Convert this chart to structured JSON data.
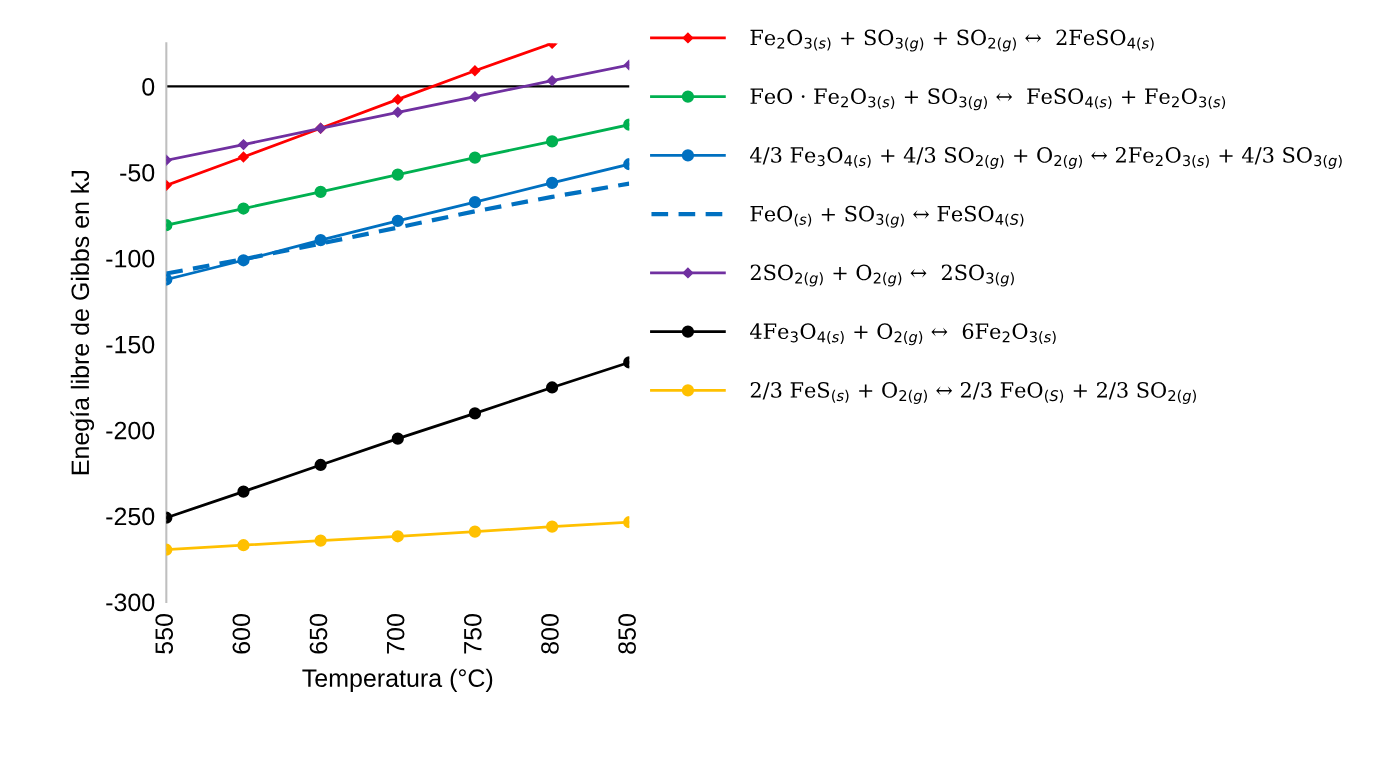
{
  "chart_data": {
    "type": "line",
    "xlabel": "Temperatura (°C)",
    "ylabel": "Enegía libre de Gibbs en kJ",
    "x": [
      550,
      600,
      650,
      700,
      750,
      800,
      850
    ],
    "xlim": [
      550,
      850
    ],
    "xticks": [
      550,
      600,
      650,
      700,
      750,
      800,
      850
    ],
    "ylim": [
      -300,
      25
    ],
    "yticks": [
      {
        "value": -300,
        "label": "-300"
      },
      {
        "value": -250,
        "label": "-250"
      },
      {
        "value": -200,
        "label": "-200"
      },
      {
        "value": -150,
        "label": "-150"
      },
      {
        "value": -100,
        "label": "-100"
      },
      {
        "value": -50,
        "label": "-50"
      },
      0
    ],
    "grid": false,
    "legend": "right",
    "ref_lines": [
      {
        "axis": "y",
        "value": 0,
        "label": null,
        "color": "#000000"
      }
    ],
    "series": [
      {
        "name": "Fe$_{2}$O$_{3(s)}$ + SO$_{3(g)}$ + SO$_{2(g)}$ ↔  2FeSO$_{4(s)}$",
        "color": "#ff0000",
        "marker": "diamond",
        "values": [
          -57.6,
          -41.1,
          -24.4,
          -7.6,
          9.1,
          25,
          null
        ]
      },
      {
        "name": "FeO · Fe$_{2}$O$_{3(s)}$ + SO$_{3(g)}$ ↔  FeSO$_{4(s)}$ + Fe$_{2}$O$_{3(s)}$",
        "color": "#00b050",
        "marker": "circle",
        "values": [
          -80.8,
          -71.1,
          -61.4,
          -51.4,
          -41.5,
          -32,
          -22.3
        ]
      },
      {
        "name": "4/3 Fe$_{3}$O$_{4(s)}$ + 4/3 SO$_{2(g)}$ + O$_{2(g)}$ ↔ 2Fe$_{2}$O$_{3(s)}$ + 4/3 SO$_{3(g)}$",
        "color": "#0070c0",
        "marker": "circle",
        "values": [
          -112.4,
          -101.2,
          -89.5,
          -78.3,
          -67.4,
          -56.2,
          -45.3
        ]
      },
      {
        "name": "FeO$_{(s)}$ + SO$_{3(g)}$ ↔ FeSO$_{4(S)}$",
        "color": "#0070c0",
        "marker": "none",
        "line_style": "dashed",
        "values": [
          -108.9,
          -100.6,
          -91.5,
          -82.2,
          -72.7,
          -64.3,
          -56.6
        ]
      },
      {
        "name": "2SO$_{2(g)}$ + O$_{2(g)}$ ↔  2SO$_{3(g)}$",
        "color": "#7030a0",
        "marker": "diamond",
        "values": [
          -43,
          -33.9,
          -24.4,
          -15.1,
          -6,
          3.3,
          12.4
        ]
      },
      {
        "name": "4Fe$_{3}$O$_{4(s)}$ + O$_{2(g)}$ ↔  6Fe$_{2}$O$_{3(s)}$",
        "color": "#000000",
        "marker": "circle",
        "values": [
          -251,
          -235.8,
          -220.3,
          -205,
          -190.3,
          -175.2,
          -160.6
        ]
      },
      {
        "name": "2/3 FeS$_{(s)}$ + O$_{2(g)}$ ↔ 2/3 FeO$_{(S)}$ + 2/3 SO$_{2(g)}$",
        "color": "#ffc000",
        "marker": "circle",
        "values": [
          -269.6,
          -267,
          -264.3,
          -261.8,
          -259.1,
          -256.2,
          -253.6
        ]
      }
    ]
  }
}
